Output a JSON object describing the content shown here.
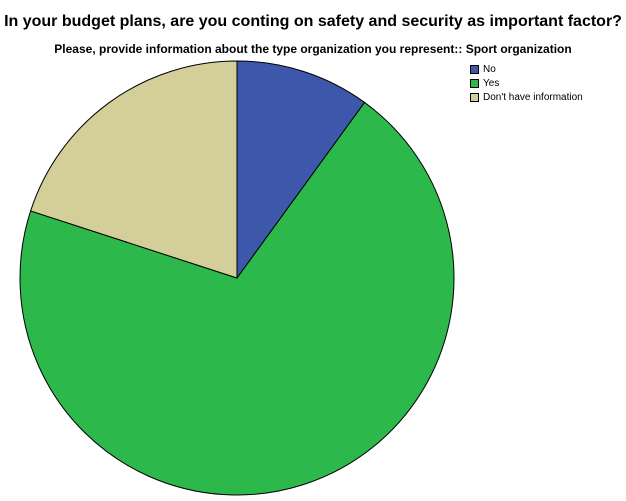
{
  "chart_data": {
    "type": "pie",
    "title": "In your budget plans, are you conting on safety and security as important factor?",
    "subtitle": "Please, provide information about the type organization you represent:: Sport organization",
    "categories": [
      "No",
      "Yes",
      "Don't have information"
    ],
    "values": [
      10,
      70,
      20
    ],
    "colors": [
      "#3d58ab",
      "#2db84b",
      "#d4ce99"
    ],
    "start_angle_deg": 0,
    "direction": "clockwise",
    "legend_position": "top-right"
  }
}
